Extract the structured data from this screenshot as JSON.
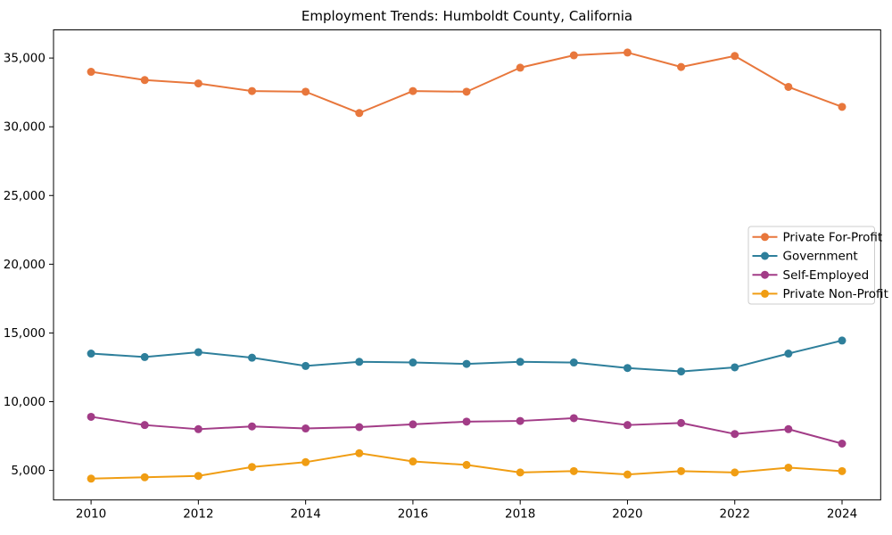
{
  "page": {
    "background": "#ffffff",
    "spine_color": "#000000",
    "text_color": "#000000"
  },
  "chart_data": {
    "type": "line",
    "title": "Employment Trends: Humboldt County, California",
    "xlabel": "",
    "ylabel": "",
    "grid": false,
    "x": [
      2010,
      2011,
      2012,
      2013,
      2014,
      2015,
      2016,
      2017,
      2018,
      2019,
      2020,
      2021,
      2022,
      2023,
      2024
    ],
    "x_ticks": [
      2010,
      2012,
      2014,
      2016,
      2018,
      2020,
      2022,
      2024
    ],
    "x_tick_labels": [
      "2010",
      "2012",
      "2014",
      "2016",
      "2018",
      "2020",
      "2022",
      "2024"
    ],
    "y_ticks": [
      5000,
      10000,
      15000,
      20000,
      25000,
      30000,
      35000
    ],
    "y_tick_labels": [
      "5,000",
      "10,000",
      "15,000",
      "20,000",
      "25,000",
      "30,000",
      "35,000"
    ],
    "xlim": [
      2009.3,
      2024.72
    ],
    "ylim": [
      2850,
      37050
    ],
    "series": [
      {
        "name": "Private For-Profit",
        "slug": "private-for-profit",
        "color": "#E8773C",
        "values": [
          34000,
          33400,
          33150,
          32600,
          32550,
          31000,
          32600,
          32550,
          34300,
          35200,
          35400,
          34350,
          35150,
          32900,
          31450
        ]
      },
      {
        "name": "Government",
        "slug": "government",
        "color": "#2E7F9B",
        "values": [
          13500,
          13250,
          13600,
          13200,
          12600,
          12900,
          12850,
          12750,
          12900,
          12850,
          12450,
          12200,
          12500,
          13500,
          14450
        ]
      },
      {
        "name": "Self-Employed",
        "slug": "self-employed",
        "color": "#A23C87",
        "values": [
          8900,
          8300,
          8000,
          8200,
          8050,
          8150,
          8350,
          8550,
          8600,
          8800,
          8300,
          8450,
          7650,
          8000,
          6950
        ]
      },
      {
        "name": "Private Non-Profit",
        "slug": "private-non-profit",
        "color": "#F09D13",
        "values": [
          4400,
          4500,
          4600,
          5250,
          5600,
          6250,
          5650,
          5400,
          4850,
          4950,
          4700,
          4950,
          4850,
          5200,
          4950
        ]
      }
    ],
    "legend": {
      "position": "right-center",
      "border_color": "#cccccc",
      "background": "#ffffff",
      "entries": [
        "Private For-Profit",
        "Government",
        "Self-Employed",
        "Private Non-Profit"
      ]
    }
  }
}
